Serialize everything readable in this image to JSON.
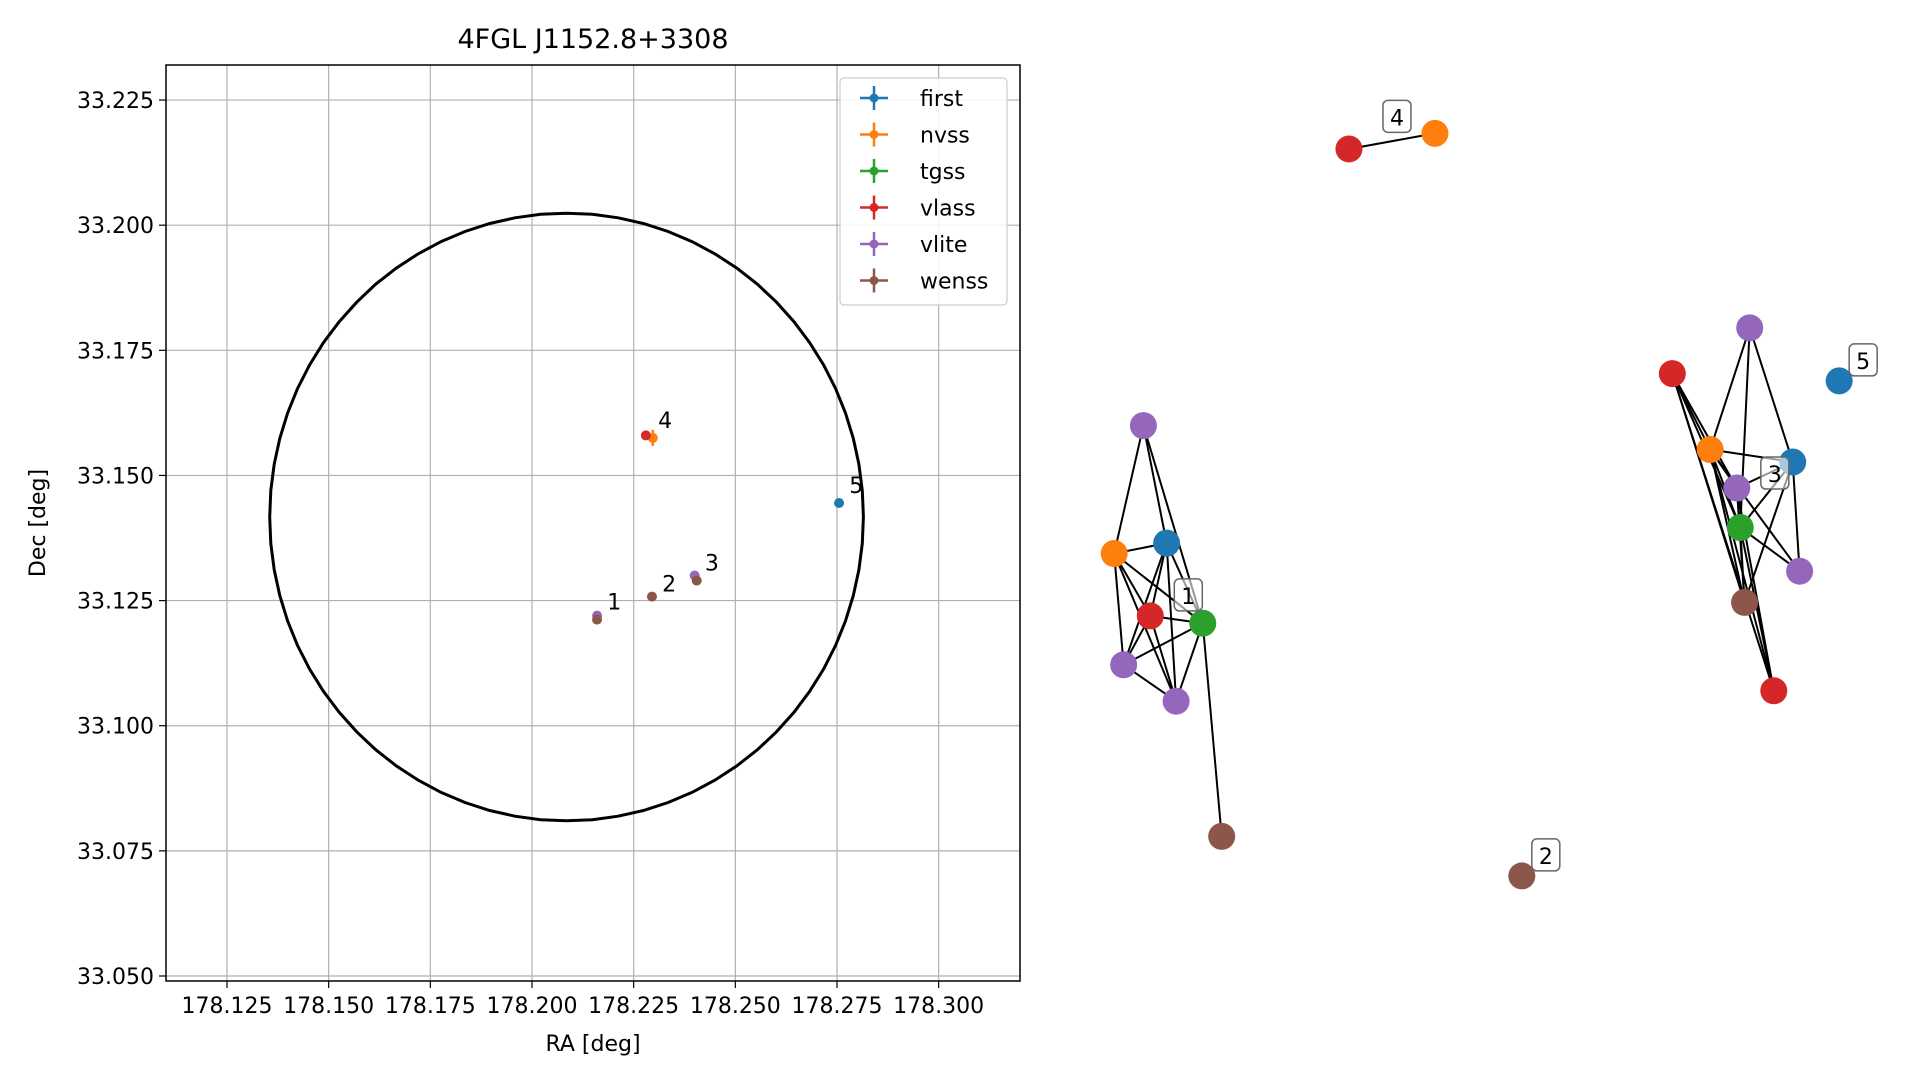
{
  "chart_data": [
    {
      "type": "scatter",
      "title": "4FGL J1152.8+3308",
      "xlabel": "RA [deg]",
      "ylabel": "Dec [deg]",
      "xlim": [
        178.11,
        178.32
      ],
      "ylim": [
        33.049,
        33.232
      ],
      "xticks": [
        178.125,
        178.15,
        178.175,
        178.2,
        178.225,
        178.25,
        178.275,
        178.3
      ],
      "xtick_labels": [
        "178.125",
        "178.150",
        "178.175",
        "178.200",
        "178.225",
        "178.250",
        "178.275",
        "178.300"
      ],
      "yticks": [
        33.05,
        33.075,
        33.1,
        33.125,
        33.15,
        33.175,
        33.2,
        33.225
      ],
      "ytick_labels": [
        "33.050",
        "33.075",
        "33.100",
        "33.125",
        "33.150",
        "33.175",
        "33.200",
        "33.225"
      ],
      "grid": true,
      "legend_position": "top-right",
      "ellipse": {
        "center": [
          178.2085,
          33.1417
        ],
        "ra_half_width": 0.073,
        "dec_half_height": 0.0607,
        "color": "#000000"
      },
      "series": [
        {
          "name": "first",
          "color": "#1f77b4",
          "points": [
            {
              "x": 178.2755,
              "y": 33.1445
            }
          ]
        },
        {
          "name": "nvss",
          "color": "#ff7f0e",
          "points": [
            {
              "x": 178.2297,
              "y": 33.1575,
              "yerr": 0.0016
            }
          ]
        },
        {
          "name": "tgss",
          "color": "#2ca02c",
          "points": []
        },
        {
          "name": "vlass",
          "color": "#d62728",
          "points": [
            {
              "x": 178.228,
              "y": 33.158
            }
          ]
        },
        {
          "name": "vlite",
          "color": "#9467bd",
          "points": [
            {
              "x": 178.216,
              "y": 33.122
            },
            {
              "x": 178.24,
              "y": 33.13
            }
          ]
        },
        {
          "name": "wenss",
          "color": "#8c564b",
          "points": [
            {
              "x": 178.216,
              "y": 33.1212
            },
            {
              "x": 178.2295,
              "y": 33.1258
            },
            {
              "x": 178.2405,
              "y": 33.129
            }
          ]
        }
      ],
      "annotations": [
        {
          "text": "1",
          "x": 178.2185,
          "y": 33.1232
        },
        {
          "text": "2",
          "x": 178.232,
          "y": 33.1268
        },
        {
          "text": "3",
          "x": 178.2425,
          "y": 33.131
        },
        {
          "text": "4",
          "x": 178.231,
          "y": 33.1595
        },
        {
          "text": "5",
          "x": 178.278,
          "y": 33.1465
        }
      ]
    },
    {
      "type": "network",
      "node_colors": {
        "first": "#1f77b4",
        "nvss": "#ff7f0e",
        "tgss": "#2ca02c",
        "vlass": "#d62728",
        "vlite": "#9467bd",
        "wenss": "#8c564b"
      },
      "groups": [
        {
          "label": "1",
          "nodes": [
            {
              "id": "g1_vlite_top",
              "kind": "vlite",
              "x": 0.097,
              "y": 0.39
            },
            {
              "id": "g1_nvss",
              "kind": "nvss",
              "x": 0.063,
              "y": 0.513
            },
            {
              "id": "g1_first",
              "kind": "first",
              "x": 0.124,
              "y": 0.503
            },
            {
              "id": "g1_vlass",
              "kind": "vlass",
              "x": 0.105,
              "y": 0.573
            },
            {
              "id": "g1_tgss",
              "kind": "tgss",
              "x": 0.166,
              "y": 0.58
            },
            {
              "id": "g1_vlite_left",
              "kind": "vlite",
              "x": 0.074,
              "y": 0.62
            },
            {
              "id": "g1_vlite_bottom",
              "kind": "vlite",
              "x": 0.135,
              "y": 0.655
            },
            {
              "id": "g1_wenss",
              "kind": "wenss",
              "x": 0.188,
              "y": 0.785
            }
          ],
          "edges": [
            [
              "g1_vlite_top",
              "g1_nvss"
            ],
            [
              "g1_vlite_top",
              "g1_first"
            ],
            [
              "g1_vlite_top",
              "g1_tgss"
            ],
            [
              "g1_nvss",
              "g1_first"
            ],
            [
              "g1_nvss",
              "g1_vlass"
            ],
            [
              "g1_nvss",
              "g1_tgss"
            ],
            [
              "g1_nvss",
              "g1_vlite_left"
            ],
            [
              "g1_nvss",
              "g1_vlite_bottom"
            ],
            [
              "g1_first",
              "g1_vlass"
            ],
            [
              "g1_first",
              "g1_tgss"
            ],
            [
              "g1_first",
              "g1_vlite_left"
            ],
            [
              "g1_first",
              "g1_vlite_bottom"
            ],
            [
              "g1_vlass",
              "g1_tgss"
            ],
            [
              "g1_vlass",
              "g1_vlite_left"
            ],
            [
              "g1_vlass",
              "g1_vlite_bottom"
            ],
            [
              "g1_tgss",
              "g1_vlite_left"
            ],
            [
              "g1_tgss",
              "g1_vlite_bottom"
            ],
            [
              "g1_tgss",
              "g1_wenss"
            ],
            [
              "g1_vlite_left",
              "g1_vlite_bottom"
            ]
          ]
        },
        {
          "label": "2",
          "nodes": [
            {
              "id": "g2_wenss",
              "kind": "wenss",
              "x": 0.537,
              "y": 0.823
            }
          ],
          "edges": []
        },
        {
          "label": "3",
          "nodes": [
            {
              "id": "g3_vlite_top",
              "kind": "vlite",
              "x": 0.802,
              "y": 0.296
            },
            {
              "id": "g3_vlass_top",
              "kind": "vlass",
              "x": 0.712,
              "y": 0.34
            },
            {
              "id": "g3_nvss",
              "kind": "nvss",
              "x": 0.756,
              "y": 0.413
            },
            {
              "id": "g3_first",
              "kind": "first",
              "x": 0.852,
              "y": 0.425
            },
            {
              "id": "g3_vlite_mid",
              "kind": "vlite",
              "x": 0.787,
              "y": 0.45
            },
            {
              "id": "g3_tgss",
              "kind": "tgss",
              "x": 0.791,
              "y": 0.488
            },
            {
              "id": "g3_vlite_right",
              "kind": "vlite",
              "x": 0.86,
              "y": 0.53
            },
            {
              "id": "g3_wenss",
              "kind": "wenss",
              "x": 0.796,
              "y": 0.56
            },
            {
              "id": "g3_vlass_bottom",
              "kind": "vlass",
              "x": 0.83,
              "y": 0.645
            }
          ],
          "edges": [
            [
              "g3_vlite_top",
              "g3_nvss"
            ],
            [
              "g3_vlite_top",
              "g3_first"
            ],
            [
              "g3_vlite_top",
              "g3_tgss"
            ],
            [
              "g3_vlass_top",
              "g3_nvss"
            ],
            [
              "g3_vlass_top",
              "g3_vlite_mid"
            ],
            [
              "g3_vlass_top",
              "g3_tgss"
            ],
            [
              "g3_vlass_top",
              "g3_wenss"
            ],
            [
              "g3_vlass_top",
              "g3_vlass_bottom"
            ],
            [
              "g3_nvss",
              "g3_first"
            ],
            [
              "g3_nvss",
              "g3_vlite_mid"
            ],
            [
              "g3_nvss",
              "g3_tgss"
            ],
            [
              "g3_nvss",
              "g3_vlite_right"
            ],
            [
              "g3_nvss",
              "g3_wenss"
            ],
            [
              "g3_nvss",
              "g3_vlass_bottom"
            ],
            [
              "g3_first",
              "g3_vlite_mid"
            ],
            [
              "g3_first",
              "g3_tgss"
            ],
            [
              "g3_first",
              "g3_vlite_right"
            ],
            [
              "g3_first",
              "g3_wenss"
            ],
            [
              "g3_vlite_mid",
              "g3_tgss"
            ],
            [
              "g3_vlite_mid",
              "g3_wenss"
            ],
            [
              "g3_vlite_mid",
              "g3_vlass_bottom"
            ],
            [
              "g3_tgss",
              "g3_vlite_right"
            ],
            [
              "g3_tgss",
              "g3_wenss"
            ],
            [
              "g3_tgss",
              "g3_vlass_bottom"
            ]
          ]
        },
        {
          "label": "4",
          "nodes": [
            {
              "id": "g4_vlass",
              "kind": "vlass",
              "x": 0.336,
              "y": 0.124
            },
            {
              "id": "g4_nvss",
              "kind": "nvss",
              "x": 0.436,
              "y": 0.109
            }
          ],
          "edges": [
            [
              "g4_vlass",
              "g4_nvss"
            ]
          ]
        },
        {
          "label": "5",
          "nodes": [
            {
              "id": "g5_first",
              "kind": "first",
              "x": 0.906,
              "y": 0.347
            }
          ],
          "edges": []
        }
      ]
    }
  ]
}
